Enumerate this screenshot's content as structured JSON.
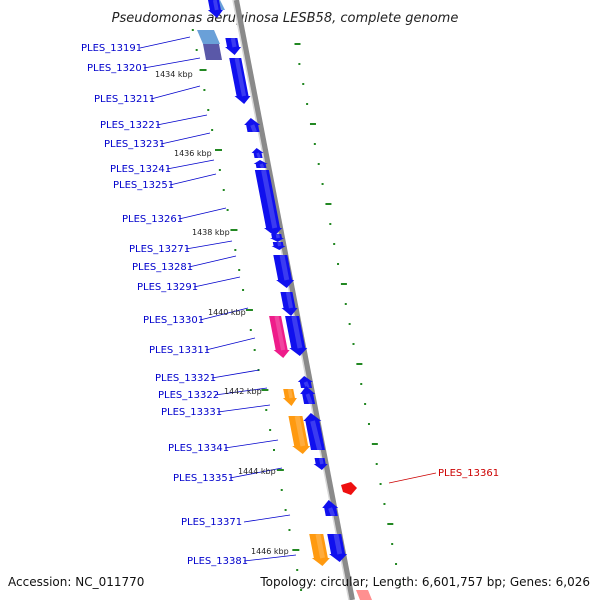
{
  "title": "Pseudomonas aeruginosa LESB58, complete genome",
  "accession": "Accession: NC_011770",
  "topology": "Topology: circular; Length: 6,601,757 bp; Genes: 6,026",
  "colors": {
    "forward_gene": "#1010ee",
    "reverse_gene": "#1010ee",
    "pink_gene": "#ee1c8a",
    "orange_gene": "#ff9a10",
    "red_gene": "#ee1010",
    "backbone": "#888888",
    "tick": "#228822",
    "label_blue": "#0000cc",
    "label_red": "#cc0000"
  },
  "gene_labels": [
    "PLES_13191",
    "PLES_13201",
    "PLES_13211",
    "PLES_13221",
    "PLES_13231",
    "PLES_13241",
    "PLES_13251",
    "PLES_13261",
    "PLES_13271",
    "PLES_13281",
    "PLES_13291",
    "PLES_13301",
    "PLES_13311",
    "PLES_13321",
    "PLES_13322",
    "PLES_13331",
    "PLES_13341",
    "PLES_13351",
    "PLES_13361",
    "PLES_13371",
    "PLES_13381"
  ],
  "kbp_labels": [
    "1434 kbp",
    "1436 kbp",
    "1438 kbp",
    "1440 kbp",
    "1442 kbp",
    "1444 kbp",
    "1446 kbp"
  ]
}
